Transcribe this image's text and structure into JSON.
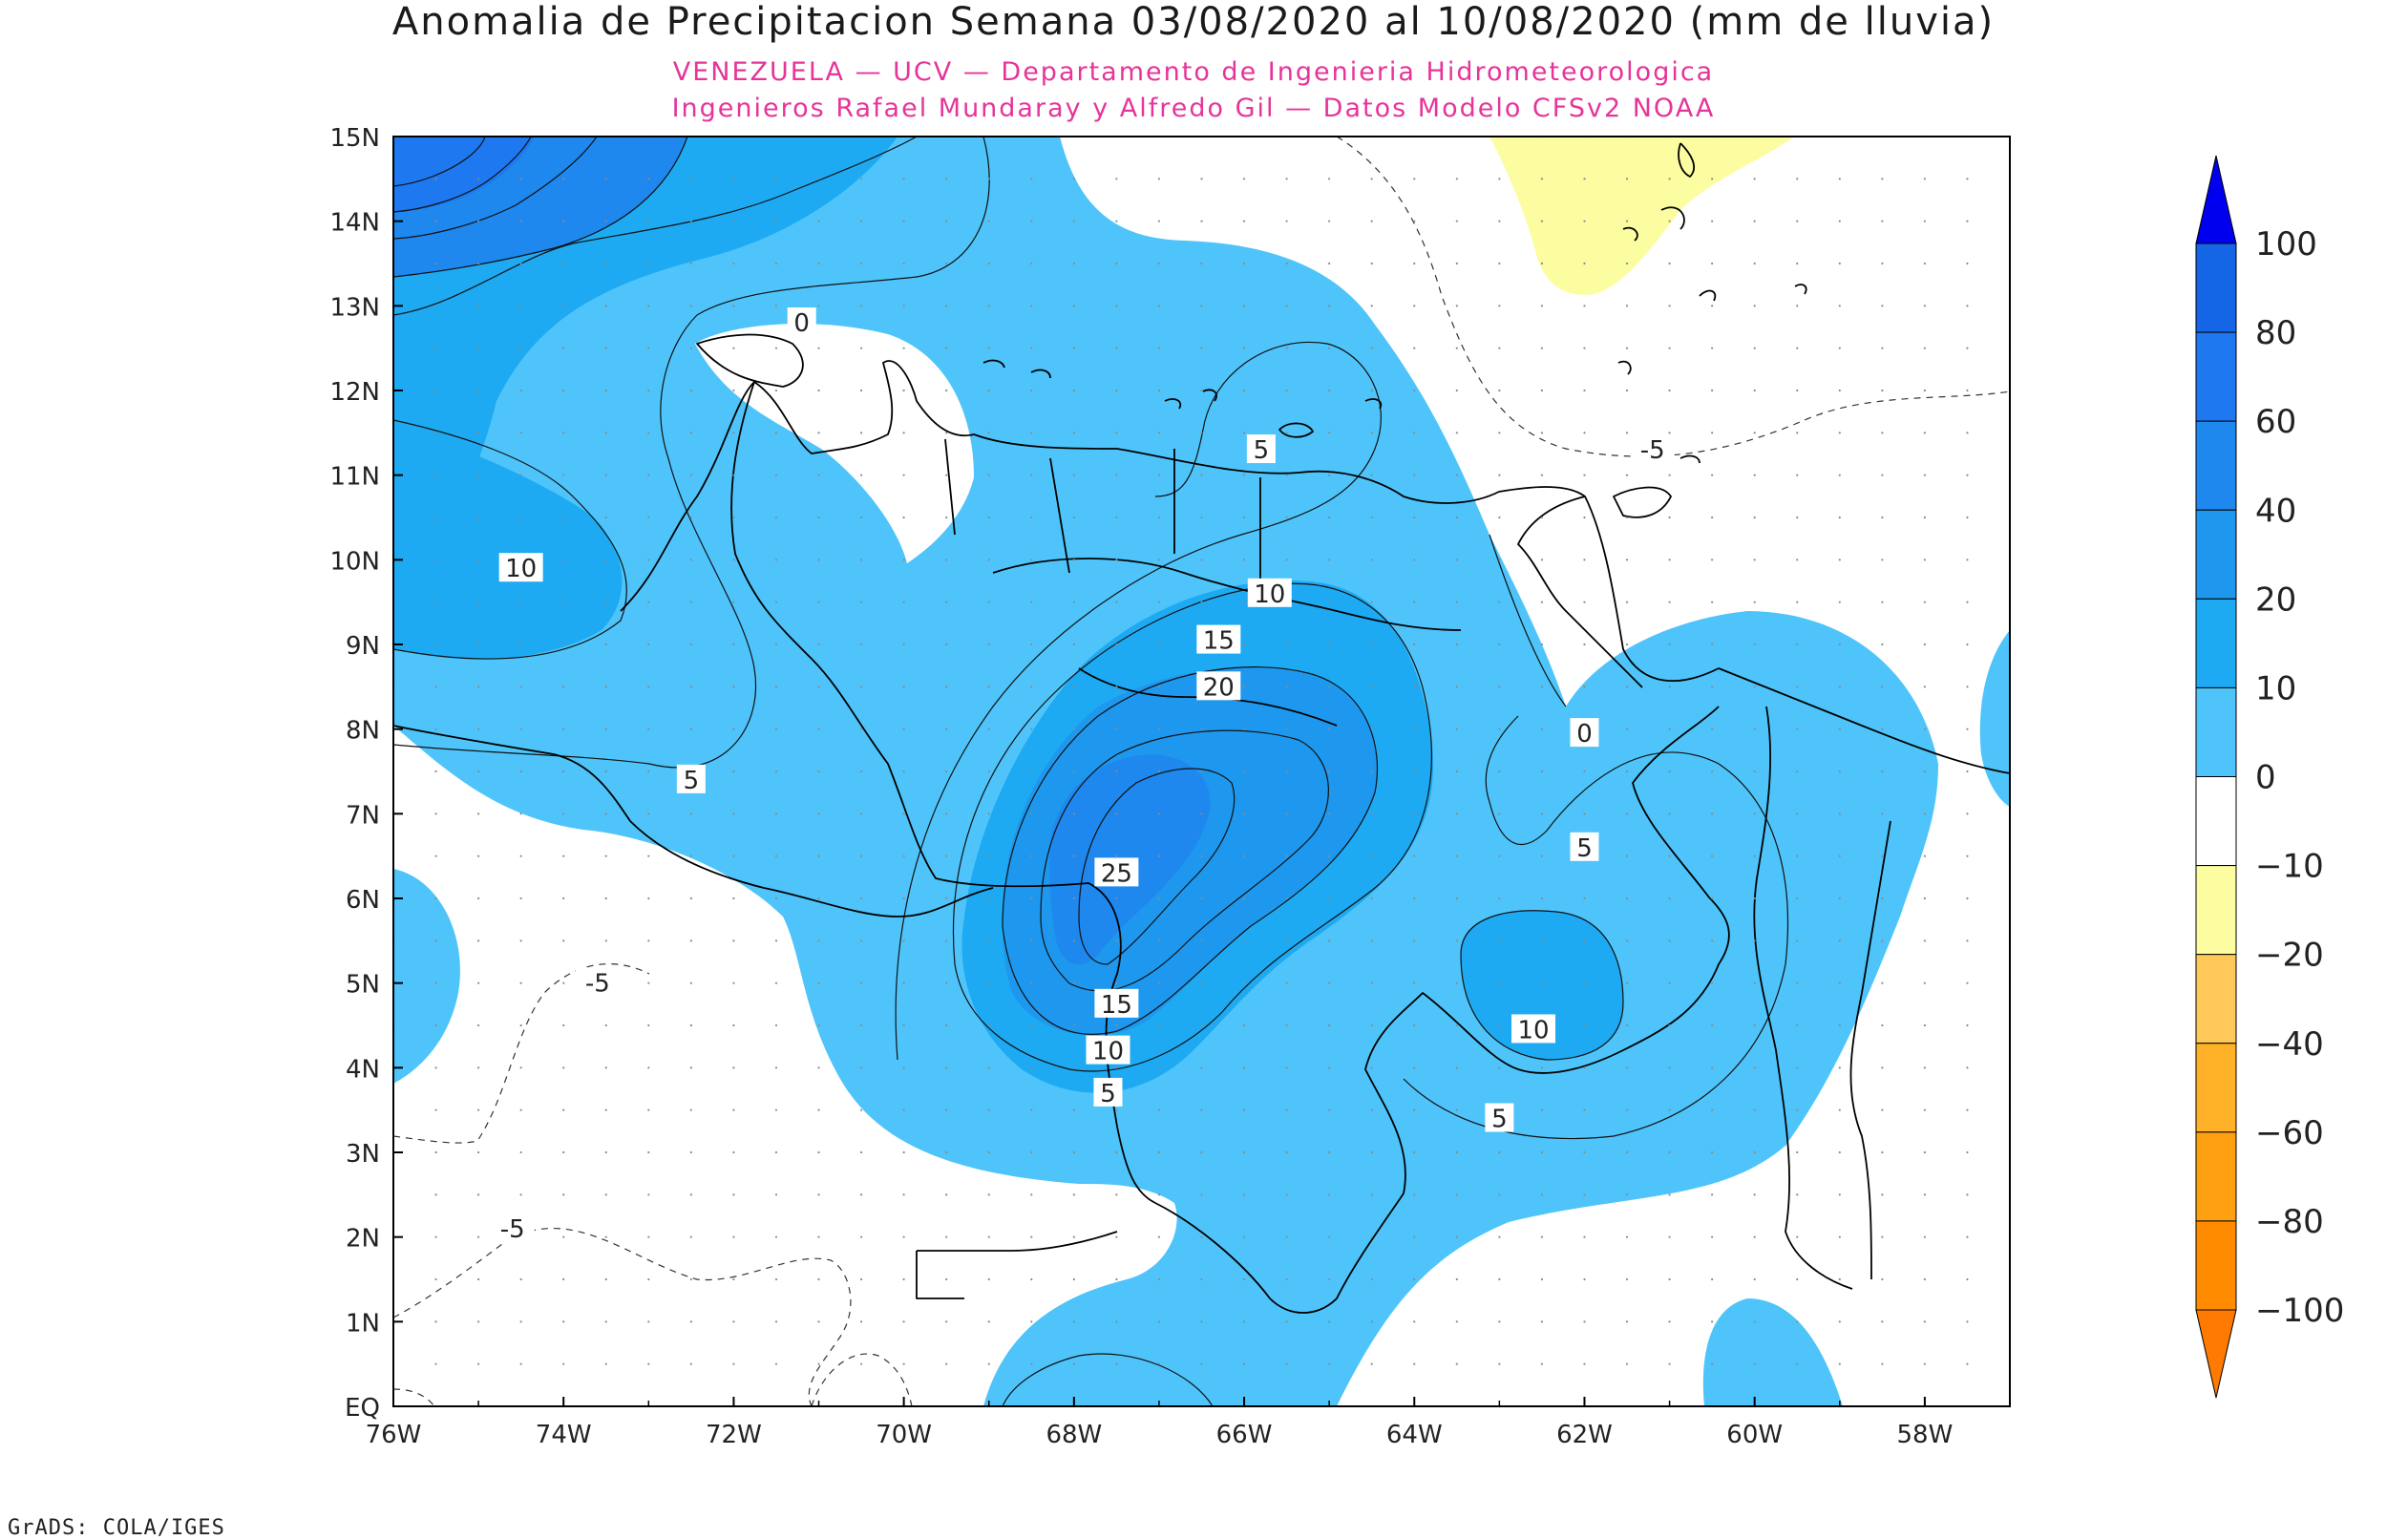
{
  "title": "Anomalia de Precipitacion Semana 03/08/2020 al 10/08/2020 (mm de lluvia)",
  "subtitle_line1": "VENEZUELA — UCV — Departamento de Ingenieria Hidrometeorologica",
  "subtitle_line2": "Ingenieros Rafael Mundaray y Alfredo Gil — Datos Modelo CFSv2 NOAA",
  "footer": "GrADS: COLA/IGES",
  "axes": {
    "lat_labels": [
      "15N",
      "14N",
      "13N",
      "12N",
      "11N",
      "10N",
      "9N",
      "8N",
      "7N",
      "6N",
      "5N",
      "4N",
      "3N",
      "2N",
      "1N",
      "EQ"
    ],
    "lon_labels": [
      "76W",
      "74W",
      "72W",
      "70W",
      "68W",
      "66W",
      "64W",
      "62W",
      "60W",
      "58W"
    ],
    "lat_range": [
      0,
      15
    ],
    "lon_range": [
      -76,
      -57
    ]
  },
  "contour_labels": [
    {
      "text": "0",
      "lon": -71.2,
      "lat": 12.8
    },
    {
      "text": "5",
      "lon": -65.8,
      "lat": 11.3
    },
    {
      "text": "-5",
      "lon": -61.2,
      "lat": 11.3
    },
    {
      "text": "10",
      "lon": -74.5,
      "lat": 9.9
    },
    {
      "text": "10",
      "lon": -65.7,
      "lat": 9.6
    },
    {
      "text": "15",
      "lon": -66.3,
      "lat": 9.05
    },
    {
      "text": "20",
      "lon": -66.3,
      "lat": 8.5
    },
    {
      "text": "0",
      "lon": -62.0,
      "lat": 7.95
    },
    {
      "text": "5",
      "lon": -72.5,
      "lat": 7.4
    },
    {
      "text": "5",
      "lon": -62.0,
      "lat": 6.6
    },
    {
      "text": "25",
      "lon": -67.5,
      "lat": 6.3
    },
    {
      "text": "-5",
      "lon": -73.6,
      "lat": 5.0
    },
    {
      "text": "15",
      "lon": -67.5,
      "lat": 4.75
    },
    {
      "text": "10",
      "lon": -62.6,
      "lat": 4.45
    },
    {
      "text": "10",
      "lon": -67.6,
      "lat": 4.2
    },
    {
      "text": "5",
      "lon": -67.6,
      "lat": 3.7
    },
    {
      "text": "5",
      "lon": -63.0,
      "lat": 3.4
    },
    {
      "text": "-5",
      "lon": -74.6,
      "lat": 2.1
    }
  ],
  "legend": {
    "labels": [
      "100",
      "80",
      "60",
      "40",
      "20",
      "10",
      "0",
      "−10",
      "−20",
      "−40",
      "−60",
      "−80",
      "−100"
    ],
    "colors": [
      "#1466e6",
      "#1e78f0",
      "#1e88ee",
      "#1e98ee",
      "#1eaaf2",
      "#4fc4fa",
      "#ffffff",
      "#fcfca0",
      "#ffc859",
      "#ffb228",
      "#ffa012",
      "#ff8c00"
    ],
    "top_arrow_color": "#0000ee",
    "bottom_arrow_color": "#ff7a00"
  },
  "colors": {
    "level_0_10": "#4fc4fa",
    "level_10_20": "#1eaaf2",
    "level_20_40": "#1e98ee",
    "level_40_60": "#1e88ee",
    "level_60_80": "#1e78f0",
    "level_neg10_neg20": "#fcfca0",
    "pink": "#e6349a"
  }
}
